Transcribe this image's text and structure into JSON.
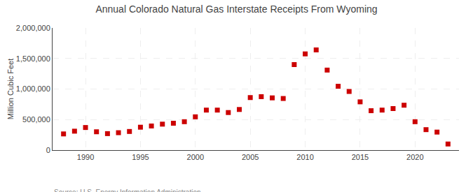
{
  "chart_data": {
    "type": "scatter",
    "title": "Annual Colorado Natural Gas Interstate Receipts From Wyoming",
    "ylabel": "Million Cubic Feet",
    "annotations": [
      "Source: U.S. Energy Information Administration"
    ],
    "x": [
      1988,
      1989,
      1990,
      1991,
      1992,
      1993,
      1994,
      1995,
      1996,
      1997,
      1998,
      1999,
      2000,
      2001,
      2002,
      2003,
      2004,
      2005,
      2006,
      2007,
      2008,
      2009,
      2010,
      2011,
      2012,
      2013,
      2014,
      2015,
      2016,
      2017,
      2018,
      2019,
      2020,
      2021,
      2022,
      2023
    ],
    "values": [
      265000,
      310000,
      370000,
      300000,
      270000,
      285000,
      305000,
      375000,
      395000,
      425000,
      440000,
      465000,
      545000,
      655000,
      655000,
      615000,
      665000,
      860000,
      875000,
      855000,
      845000,
      1400000,
      1575000,
      1640000,
      1310000,
      1045000,
      960000,
      790000,
      645000,
      655000,
      680000,
      735000,
      465000,
      335000,
      295000,
      100000
    ],
    "color": "#cc0000",
    "marker": "square",
    "xlim": [
      1987,
      2024
    ],
    "xticks": [
      1990,
      1995,
      2000,
      2005,
      2010,
      2015,
      2020
    ],
    "ylim": [
      0,
      2000000
    ],
    "yticks": [
      0,
      {
        "value": 500000,
        "label": "500,000"
      },
      {
        "value": 1000000,
        "label": "1,000,000"
      },
      {
        "value": 1500000,
        "label": "1,500,000"
      },
      {
        "value": 2000000,
        "label": "2,000,000"
      }
    ],
    "grid": true
  }
}
